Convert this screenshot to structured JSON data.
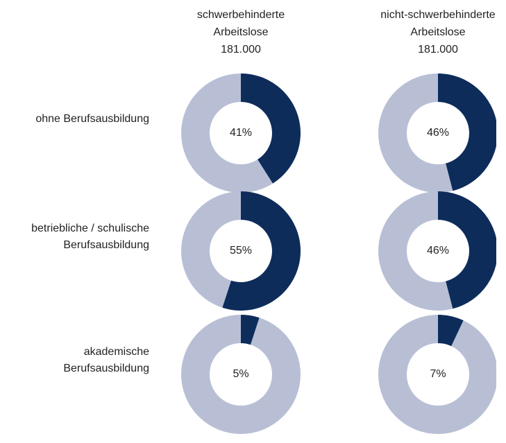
{
  "columns": [
    {
      "title": [
        "schwerbehinderte",
        "Arbeitslose"
      ],
      "total": "181.000"
    },
    {
      "title": [
        "nicht-schwerbehinderte",
        "Arbeitslose"
      ],
      "total": "181.000"
    }
  ],
  "rows": [
    [
      "ohne Berufsausbildung"
    ],
    [
      "betriebliche / schulische",
      "Berufsausbildung"
    ],
    [
      "akademische",
      "Berufsausbildung"
    ]
  ],
  "chart_data": [
    {
      "type": "donut",
      "values": [
        41
      ],
      "value_labels": [
        "41%"
      ],
      "color": "#0d2c5a",
      "track_color": "#b8bfd5"
    },
    {
      "type": "donut",
      "values": [
        46
      ],
      "value_labels": [
        "46%"
      ],
      "color": "#0d2c5a",
      "track_color": "#b8bfd5"
    },
    {
      "type": "donut",
      "values": [
        55
      ],
      "value_labels": [
        "55%"
      ],
      "color": "#0d2c5a",
      "track_color": "#b8bfd5"
    },
    {
      "type": "donut",
      "values": [
        46
      ],
      "value_labels": [
        "46%"
      ],
      "color": "#0d2c5a",
      "track_color": "#b8bfd5"
    },
    {
      "type": "donut",
      "values": [
        5
      ],
      "value_labels": [
        "5%"
      ],
      "color": "#0d2c5a",
      "track_color": "#b8bfd5"
    },
    {
      "type": "donut",
      "values": [
        7
      ],
      "value_labels": [
        "7%"
      ],
      "color": "#0d2c5a",
      "track_color": "#b8bfd5"
    }
  ]
}
